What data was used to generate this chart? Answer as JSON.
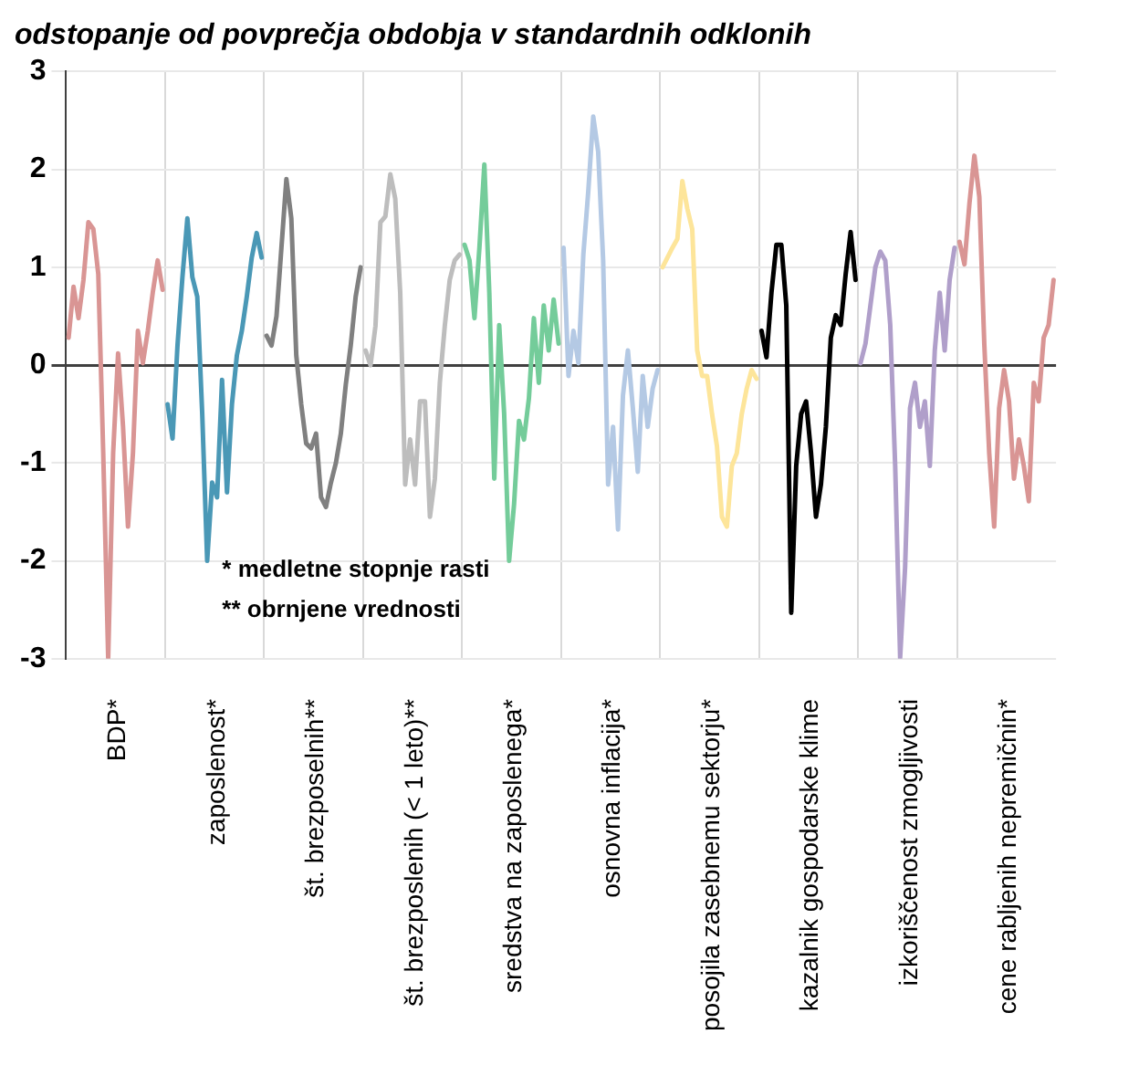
{
  "chart_data": {
    "type": "line",
    "subtitle": "odstopanje od povprečja obdobja v standardnih odklonih",
    "categories": [
      null,
      null,
      null,
      null,
      null,
      null,
      null,
      null,
      null,
      null,
      "BDP*",
      null,
      null,
      null,
      null,
      null,
      null,
      null,
      null,
      null,
      null,
      null,
      null,
      null,
      null,
      null,
      null,
      null,
      null,
      null,
      "zaposlenost*",
      null,
      null,
      null,
      null,
      null,
      null,
      null,
      null,
      null,
      null,
      null,
      null,
      null,
      null,
      null,
      null,
      null,
      null,
      null,
      "št. brezposelnih**",
      null,
      null,
      null,
      null,
      null,
      null,
      null,
      null,
      null,
      null,
      null,
      null,
      null,
      null,
      null,
      null,
      null,
      null,
      null,
      "št. brezposlenih (< 1 leto)**",
      null,
      null,
      null,
      null,
      null,
      null,
      null,
      null,
      null,
      null,
      null,
      null,
      null,
      null,
      null,
      null,
      null,
      null,
      null,
      "sredstva na zaposlenega*",
      null,
      null,
      null,
      null,
      null,
      null,
      null,
      null,
      null,
      null,
      null,
      null,
      null,
      null,
      null,
      null,
      null,
      null,
      null,
      "osnovna inflacija*",
      null,
      null,
      null,
      null,
      null,
      null,
      null,
      null,
      null,
      null,
      null,
      null,
      null,
      null,
      null,
      null,
      null,
      null,
      null,
      "posojila zasebnemu sektorju*",
      null,
      null,
      null,
      null,
      null,
      null,
      null,
      null,
      null,
      null,
      null,
      null,
      null,
      null,
      null,
      null,
      null,
      null,
      null,
      "kazalnik gospodarske klime",
      null,
      null,
      null,
      null,
      null,
      null,
      null,
      null,
      null,
      null,
      null,
      null,
      null,
      null,
      null,
      null,
      null,
      null,
      null,
      "izkoriščenost zmogljivosti",
      null,
      null,
      null,
      null,
      null,
      null,
      null,
      null,
      null,
      null,
      null,
      null,
      null,
      null,
      null,
      null,
      null,
      null,
      null,
      "cene rabljenih nepremičnin*",
      null,
      null,
      null,
      null,
      null,
      null,
      null,
      null,
      null
    ],
    "series": [
      {
        "color": "#d99594",
        "values": [
          0.28,
          0.8,
          0.48,
          0.87,
          1.46,
          1.39,
          0.93,
          -0.9,
          -2.99,
          -0.9,
          0.12,
          -0.63,
          -1.65,
          -0.9,
          0.35,
          0.02,
          0.35,
          0.74,
          1.07,
          0.77,
          null,
          null,
          null,
          null,
          null,
          null,
          null,
          null,
          null,
          null,
          null,
          null,
          null,
          null,
          null,
          null,
          null,
          null,
          null,
          null,
          null,
          null,
          null,
          null,
          null,
          null,
          null,
          null,
          null,
          null,
          null,
          null,
          null,
          null,
          null,
          null,
          null,
          null,
          null,
          null,
          null,
          null,
          null,
          null,
          null,
          null,
          null,
          null,
          null,
          null,
          null,
          null,
          null,
          null,
          null,
          null,
          null,
          null,
          null,
          null,
          null,
          null,
          null,
          null,
          null,
          null,
          null,
          null,
          null,
          null,
          null,
          null,
          null,
          null,
          null,
          null,
          null,
          null,
          null,
          null,
          null,
          null,
          null,
          null,
          null,
          null,
          null,
          null,
          null,
          null,
          null,
          null,
          null,
          null,
          null,
          null,
          null,
          null,
          null,
          null,
          null,
          null,
          null,
          null,
          null,
          null,
          null,
          null,
          null,
          null,
          null,
          null,
          null,
          null,
          null,
          null,
          null,
          null,
          null,
          null,
          null,
          null,
          null,
          null,
          null,
          null,
          null,
          null,
          null,
          null,
          null,
          null,
          null,
          null,
          null,
          null,
          null,
          null,
          null,
          null,
          null,
          null,
          null,
          null,
          null,
          null,
          null,
          null,
          null,
          null,
          null,
          null,
          null,
          null,
          null,
          null,
          null,
          null,
          null,
          null,
          null,
          null,
          null,
          null,
          null,
          null,
          null,
          null,
          null,
          null,
          null,
          null,
          null,
          null,
          null,
          null,
          null,
          null,
          null,
          null
        ]
      },
      {
        "color": "#4a98b6",
        "values": [
          null,
          null,
          null,
          null,
          null,
          null,
          null,
          null,
          null,
          null,
          null,
          null,
          null,
          null,
          null,
          null,
          null,
          null,
          null,
          null,
          -0.4,
          -0.75,
          0.2,
          0.9,
          1.5,
          0.9,
          0.7,
          -0.5,
          -2.0,
          -1.2,
          -1.35,
          -0.15,
          -1.3,
          -0.4,
          0.1,
          0.35,
          0.7,
          1.1,
          1.35,
          1.1,
          null,
          null,
          null,
          null,
          null,
          null,
          null,
          null,
          null,
          null,
          null,
          null,
          null,
          null,
          null,
          null,
          null,
          null,
          null,
          null,
          null,
          null,
          null,
          null,
          null,
          null,
          null,
          null,
          null,
          null,
          null,
          null,
          null,
          null,
          null,
          null,
          null,
          null,
          null,
          null,
          null,
          null,
          null,
          null,
          null,
          null,
          null,
          null,
          null,
          null,
          null,
          null,
          null,
          null,
          null,
          null,
          null,
          null,
          null,
          null,
          null,
          null,
          null,
          null,
          null,
          null,
          null,
          null,
          null,
          null,
          null,
          null,
          null,
          null,
          null,
          null,
          null,
          null,
          null,
          null,
          null,
          null,
          null,
          null,
          null,
          null,
          null,
          null,
          null,
          null,
          null,
          null,
          null,
          null,
          null,
          null,
          null,
          null,
          null,
          null,
          null,
          null,
          null,
          null,
          null,
          null,
          null,
          null,
          null,
          null,
          null,
          null,
          null,
          null,
          null,
          null,
          null,
          null,
          null,
          null,
          null,
          null,
          null,
          null,
          null,
          null,
          null,
          null,
          null,
          null,
          null,
          null,
          null,
          null,
          null,
          null,
          null,
          null,
          null,
          null,
          null,
          null,
          null,
          null,
          null,
          null,
          null,
          null,
          null,
          null,
          null,
          null,
          null,
          null,
          null,
          null,
          null,
          null,
          null,
          null
        ]
      },
      {
        "color": "#808080",
        "values": [
          null,
          null,
          null,
          null,
          null,
          null,
          null,
          null,
          null,
          null,
          null,
          null,
          null,
          null,
          null,
          null,
          null,
          null,
          null,
          null,
          null,
          null,
          null,
          null,
          null,
          null,
          null,
          null,
          null,
          null,
          null,
          null,
          null,
          null,
          null,
          null,
          null,
          null,
          null,
          null,
          0.3,
          0.2,
          0.5,
          1.2,
          1.9,
          1.5,
          0.1,
          -0.4,
          -0.8,
          -0.85,
          -0.7,
          -1.35,
          -1.45,
          -1.2,
          -1.0,
          -0.7,
          -0.2,
          0.2,
          0.7,
          1.0,
          null,
          null,
          null,
          null,
          null,
          null,
          null,
          null,
          null,
          null,
          null,
          null,
          null,
          null,
          null,
          null,
          null,
          null,
          null,
          null,
          null,
          null,
          null,
          null,
          null,
          null,
          null,
          null,
          null,
          null,
          null,
          null,
          null,
          null,
          null,
          null,
          null,
          null,
          null,
          null,
          null,
          null,
          null,
          null,
          null,
          null,
          null,
          null,
          null,
          null,
          null,
          null,
          null,
          null,
          null,
          null,
          null,
          null,
          null,
          null,
          null,
          null,
          null,
          null,
          null,
          null,
          null,
          null,
          null,
          null,
          null,
          null,
          null,
          null,
          null,
          null,
          null,
          null,
          null,
          null,
          null,
          null,
          null,
          null,
          null,
          null,
          null,
          null,
          null,
          null,
          null,
          null,
          null,
          null,
          null,
          null,
          null,
          null,
          null,
          null,
          null,
          null,
          null,
          null,
          null,
          null,
          null,
          null,
          null,
          null,
          null,
          null,
          null,
          null,
          null,
          null,
          null,
          null,
          null,
          null,
          null,
          null,
          null,
          null,
          null,
          null,
          null,
          null,
          null,
          null,
          null,
          null,
          null,
          null,
          null,
          null,
          null,
          null,
          null,
          null
        ]
      },
      {
        "color": "#bdbdbd",
        "values": [
          null,
          null,
          null,
          null,
          null,
          null,
          null,
          null,
          null,
          null,
          null,
          null,
          null,
          null,
          null,
          null,
          null,
          null,
          null,
          null,
          null,
          null,
          null,
          null,
          null,
          null,
          null,
          null,
          null,
          null,
          null,
          null,
          null,
          null,
          null,
          null,
          null,
          null,
          null,
          null,
          null,
          null,
          null,
          null,
          null,
          null,
          null,
          null,
          null,
          null,
          null,
          null,
          null,
          null,
          null,
          null,
          null,
          null,
          null,
          null,
          0.15,
          0.0,
          0.4,
          1.46,
          1.52,
          1.95,
          1.7,
          0.74,
          -1.22,
          -0.76,
          -1.22,
          -0.37,
          -0.37,
          -1.55,
          -1.16,
          -0.18,
          0.4,
          0.87,
          1.07,
          1.13,
          null,
          null,
          null,
          null,
          null,
          null,
          null,
          null,
          null,
          null,
          null,
          null,
          null,
          null,
          null,
          null,
          null,
          null,
          null,
          null,
          null,
          null,
          null,
          null,
          null,
          null,
          null,
          null,
          null,
          null,
          null,
          null,
          null,
          null,
          null,
          null,
          null,
          null,
          null,
          null,
          null,
          null,
          null,
          null,
          null,
          null,
          null,
          null,
          null,
          null,
          null,
          null,
          null,
          null,
          null,
          null,
          null,
          null,
          null,
          null,
          null,
          null,
          null,
          null,
          null,
          null,
          null,
          null,
          null,
          null,
          null,
          null,
          null,
          null,
          null,
          null,
          null,
          null,
          null,
          null,
          null,
          null,
          null,
          null,
          null,
          null,
          null,
          null,
          null,
          null,
          null,
          null,
          null,
          null,
          null,
          null,
          null,
          null,
          null,
          null,
          null,
          null,
          null,
          null,
          null,
          null,
          null,
          null,
          null,
          null,
          null,
          null,
          null,
          null,
          null,
          null,
          null,
          null,
          null,
          null
        ]
      },
      {
        "color": "#74cc9a",
        "values": [
          null,
          null,
          null,
          null,
          null,
          null,
          null,
          null,
          null,
          null,
          null,
          null,
          null,
          null,
          null,
          null,
          null,
          null,
          null,
          null,
          null,
          null,
          null,
          null,
          null,
          null,
          null,
          null,
          null,
          null,
          null,
          null,
          null,
          null,
          null,
          null,
          null,
          null,
          null,
          null,
          null,
          null,
          null,
          null,
          null,
          null,
          null,
          null,
          null,
          null,
          null,
          null,
          null,
          null,
          null,
          null,
          null,
          null,
          null,
          null,
          null,
          null,
          null,
          null,
          null,
          null,
          null,
          null,
          null,
          null,
          null,
          null,
          null,
          null,
          null,
          null,
          null,
          null,
          null,
          null,
          1.23,
          1.07,
          0.48,
          1.2,
          2.05,
          0.74,
          -1.16,
          0.41,
          -0.5,
          -2.0,
          -1.42,
          -0.57,
          -0.76,
          -0.34,
          0.48,
          -0.18,
          0.61,
          0.15,
          0.67,
          0.22,
          null,
          null,
          null,
          null,
          null,
          null,
          null,
          null,
          null,
          null,
          null,
          null,
          null,
          null,
          null,
          null,
          null,
          null,
          null,
          null,
          null,
          null,
          null,
          null,
          null,
          null,
          null,
          null,
          null,
          null,
          null,
          null,
          null,
          null,
          null,
          null,
          null,
          null,
          null,
          null,
          null,
          null,
          null,
          null,
          null,
          null,
          null,
          null,
          null,
          null,
          null,
          null,
          null,
          null,
          null,
          null,
          null,
          null,
          null,
          null,
          null,
          null,
          null,
          null,
          null,
          null,
          null,
          null,
          null,
          null,
          null,
          null,
          null,
          null,
          null,
          null,
          null,
          null,
          null,
          null,
          null,
          null,
          null,
          null,
          null,
          null,
          null,
          null,
          null,
          null,
          null,
          null,
          null,
          null,
          null,
          null,
          null,
          null,
          null,
          null
        ]
      },
      {
        "color": "#b4c9e4",
        "values": [
          null,
          null,
          null,
          null,
          null,
          null,
          null,
          null,
          null,
          null,
          null,
          null,
          null,
          null,
          null,
          null,
          null,
          null,
          null,
          null,
          null,
          null,
          null,
          null,
          null,
          null,
          null,
          null,
          null,
          null,
          null,
          null,
          null,
          null,
          null,
          null,
          null,
          null,
          null,
          null,
          null,
          null,
          null,
          null,
          null,
          null,
          null,
          null,
          null,
          null,
          null,
          null,
          null,
          null,
          null,
          null,
          null,
          null,
          null,
          null,
          null,
          null,
          null,
          null,
          null,
          null,
          null,
          null,
          null,
          null,
          null,
          null,
          null,
          null,
          null,
          null,
          null,
          null,
          null,
          null,
          null,
          null,
          null,
          null,
          null,
          null,
          null,
          null,
          null,
          null,
          null,
          null,
          null,
          null,
          null,
          null,
          null,
          null,
          null,
          null,
          1.2,
          -0.11,
          0.35,
          0.02,
          1.13,
          1.78,
          2.54,
          2.18,
          1.07,
          -1.22,
          -0.63,
          -1.68,
          -0.31,
          0.15,
          -0.44,
          -1.09,
          -0.11,
          -0.63,
          -0.24,
          -0.05,
          null,
          null,
          null,
          null,
          null,
          null,
          null,
          null,
          null,
          null,
          null,
          null,
          null,
          null,
          null,
          null,
          null,
          null,
          null,
          null,
          null,
          null,
          null,
          null,
          null,
          null,
          null,
          null,
          null,
          null,
          null,
          null,
          null,
          null,
          null,
          null,
          null,
          null,
          null,
          null,
          null,
          null,
          null,
          null,
          null,
          null,
          null,
          null,
          null,
          null,
          null,
          null,
          null,
          null,
          null,
          null,
          null,
          null,
          null,
          null,
          null,
          null,
          null,
          null,
          null,
          null,
          null,
          null,
          null,
          null,
          null,
          null,
          null,
          null,
          null,
          null,
          null,
          null,
          null,
          null
        ]
      },
      {
        "color": "#fde59a",
        "values": [
          null,
          null,
          null,
          null,
          null,
          null,
          null,
          null,
          null,
          null,
          null,
          null,
          null,
          null,
          null,
          null,
          null,
          null,
          null,
          null,
          null,
          null,
          null,
          null,
          null,
          null,
          null,
          null,
          null,
          null,
          null,
          null,
          null,
          null,
          null,
          null,
          null,
          null,
          null,
          null,
          null,
          null,
          null,
          null,
          null,
          null,
          null,
          null,
          null,
          null,
          null,
          null,
          null,
          null,
          null,
          null,
          null,
          null,
          null,
          null,
          null,
          null,
          null,
          null,
          null,
          null,
          null,
          null,
          null,
          null,
          null,
          null,
          null,
          null,
          null,
          null,
          null,
          null,
          null,
          null,
          null,
          null,
          null,
          null,
          null,
          null,
          null,
          null,
          null,
          null,
          null,
          null,
          null,
          null,
          null,
          null,
          null,
          null,
          null,
          null,
          null,
          null,
          null,
          null,
          null,
          null,
          null,
          null,
          null,
          null,
          null,
          null,
          null,
          null,
          null,
          null,
          null,
          null,
          null,
          null,
          1.0,
          1.1,
          1.2,
          1.29,
          1.88,
          1.6,
          1.39,
          0.15,
          -0.11,
          -0.11,
          -0.5,
          -0.83,
          -1.55,
          -1.65,
          -1.03,
          -0.9,
          -0.5,
          -0.24,
          -0.05,
          -0.14,
          null,
          null,
          null,
          null,
          null,
          null,
          null,
          null,
          null,
          null,
          null,
          null,
          null,
          null,
          null,
          null,
          null,
          null,
          null,
          null,
          null,
          null,
          null,
          null,
          null,
          null,
          null,
          null,
          null,
          null,
          null,
          null,
          null,
          null,
          null,
          null,
          null,
          null,
          null,
          null,
          null,
          null,
          null,
          null,
          null,
          null,
          null,
          null,
          null,
          null,
          null,
          null,
          null,
          null,
          null,
          null,
          null,
          null,
          null,
          null
        ]
      },
      {
        "color": "#000000",
        "values": [
          null,
          null,
          null,
          null,
          null,
          null,
          null,
          null,
          null,
          null,
          null,
          null,
          null,
          null,
          null,
          null,
          null,
          null,
          null,
          null,
          null,
          null,
          null,
          null,
          null,
          null,
          null,
          null,
          null,
          null,
          null,
          null,
          null,
          null,
          null,
          null,
          null,
          null,
          null,
          null,
          null,
          null,
          null,
          null,
          null,
          null,
          null,
          null,
          null,
          null,
          null,
          null,
          null,
          null,
          null,
          null,
          null,
          null,
          null,
          null,
          null,
          null,
          null,
          null,
          null,
          null,
          null,
          null,
          null,
          null,
          null,
          null,
          null,
          null,
          null,
          null,
          null,
          null,
          null,
          null,
          null,
          null,
          null,
          null,
          null,
          null,
          null,
          null,
          null,
          null,
          null,
          null,
          null,
          null,
          null,
          null,
          null,
          null,
          null,
          null,
          null,
          null,
          null,
          null,
          null,
          null,
          null,
          null,
          null,
          null,
          null,
          null,
          null,
          null,
          null,
          null,
          null,
          null,
          null,
          null,
          null,
          null,
          null,
          null,
          null,
          null,
          null,
          null,
          null,
          null,
          null,
          null,
          null,
          null,
          null,
          null,
          null,
          null,
          null,
          null,
          0.35,
          0.08,
          0.74,
          1.23,
          1.23,
          0.61,
          -2.53,
          -1.03,
          -0.5,
          -0.37,
          -0.9,
          -1.55,
          -1.22,
          -0.63,
          0.28,
          0.51,
          0.41,
          0.93,
          1.36,
          0.87,
          null,
          null,
          null,
          null,
          null,
          null,
          null,
          null,
          null,
          null,
          null,
          null,
          null,
          null,
          null,
          null,
          null,
          null,
          null,
          null,
          null,
          null,
          null,
          null,
          null,
          null,
          null,
          null,
          null,
          null,
          null,
          null,
          null,
          null,
          null,
          null,
          null,
          null,
          null,
          null
        ]
      },
      {
        "color": "#b09fca",
        "values": [
          null,
          null,
          null,
          null,
          null,
          null,
          null,
          null,
          null,
          null,
          null,
          null,
          null,
          null,
          null,
          null,
          null,
          null,
          null,
          null,
          null,
          null,
          null,
          null,
          null,
          null,
          null,
          null,
          null,
          null,
          null,
          null,
          null,
          null,
          null,
          null,
          null,
          null,
          null,
          null,
          null,
          null,
          null,
          null,
          null,
          null,
          null,
          null,
          null,
          null,
          null,
          null,
          null,
          null,
          null,
          null,
          null,
          null,
          null,
          null,
          null,
          null,
          null,
          null,
          null,
          null,
          null,
          null,
          null,
          null,
          null,
          null,
          null,
          null,
          null,
          null,
          null,
          null,
          null,
          null,
          null,
          null,
          null,
          null,
          null,
          null,
          null,
          null,
          null,
          null,
          null,
          null,
          null,
          null,
          null,
          null,
          null,
          null,
          null,
          null,
          null,
          null,
          null,
          null,
          null,
          null,
          null,
          null,
          null,
          null,
          null,
          null,
          null,
          null,
          null,
          null,
          null,
          null,
          null,
          null,
          null,
          null,
          null,
          null,
          null,
          null,
          null,
          null,
          null,
          null,
          null,
          null,
          null,
          null,
          null,
          null,
          null,
          null,
          null,
          null,
          null,
          null,
          null,
          null,
          null,
          null,
          null,
          null,
          null,
          null,
          null,
          null,
          null,
          null,
          null,
          null,
          null,
          null,
          null,
          null,
          0.02,
          0.22,
          0.61,
          1.0,
          1.16,
          1.07,
          0.41,
          -1.03,
          -2.99,
          -2.07,
          -0.44,
          -0.18,
          -0.63,
          -0.37,
          -1.03,
          0.15,
          0.74,
          0.15,
          0.87,
          1.2,
          null,
          null,
          null,
          null,
          null,
          null,
          null,
          null,
          null,
          null,
          null,
          null,
          null,
          null,
          null,
          null,
          null,
          null,
          null,
          null
        ]
      },
      {
        "color": "#d99594",
        "values": [
          null,
          null,
          null,
          null,
          null,
          null,
          null,
          null,
          null,
          null,
          null,
          null,
          null,
          null,
          null,
          null,
          null,
          null,
          null,
          null,
          null,
          null,
          null,
          null,
          null,
          null,
          null,
          null,
          null,
          null,
          null,
          null,
          null,
          null,
          null,
          null,
          null,
          null,
          null,
          null,
          null,
          null,
          null,
          null,
          null,
          null,
          null,
          null,
          null,
          null,
          null,
          null,
          null,
          null,
          null,
          null,
          null,
          null,
          null,
          null,
          null,
          null,
          null,
          null,
          null,
          null,
          null,
          null,
          null,
          null,
          null,
          null,
          null,
          null,
          null,
          null,
          null,
          null,
          null,
          null,
          null,
          null,
          null,
          null,
          null,
          null,
          null,
          null,
          null,
          null,
          null,
          null,
          null,
          null,
          null,
          null,
          null,
          null,
          null,
          null,
          null,
          null,
          null,
          null,
          null,
          null,
          null,
          null,
          null,
          null,
          null,
          null,
          null,
          null,
          null,
          null,
          null,
          null,
          null,
          null,
          null,
          null,
          null,
          null,
          null,
          null,
          null,
          null,
          null,
          null,
          null,
          null,
          null,
          null,
          null,
          null,
          null,
          null,
          null,
          null,
          null,
          null,
          null,
          null,
          null,
          null,
          null,
          null,
          null,
          null,
          null,
          null,
          null,
          null,
          null,
          null,
          null,
          null,
          null,
          null,
          null,
          null,
          null,
          null,
          null,
          null,
          null,
          null,
          null,
          null,
          null,
          null,
          null,
          null,
          null,
          null,
          null,
          null,
          null,
          null,
          1.26,
          1.03,
          1.65,
          2.14,
          1.72,
          0.22,
          -0.9,
          -1.65,
          -0.44,
          -0.05,
          -0.37,
          -1.16,
          -0.76,
          -1.03,
          -1.39,
          -0.18,
          -0.37,
          0.28,
          0.41,
          0.87
        ]
      }
    ],
    "ylim": [
      -3,
      3
    ],
    "yticks": [
      -3,
      -2,
      -1,
      0,
      1,
      2,
      3
    ],
    "grid": true,
    "annotations": [
      "* medletne stopnje rasti",
      "** obrnjene vrednosti"
    ]
  }
}
